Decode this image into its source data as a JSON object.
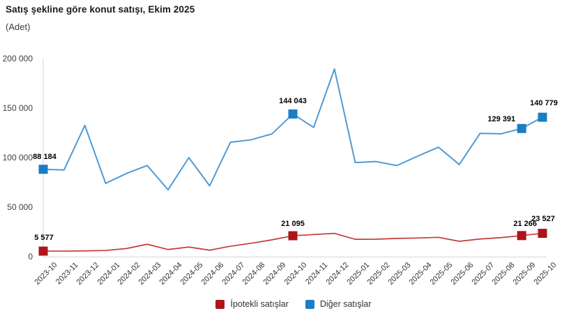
{
  "header": {
    "title": "Satış şekline göre konut satışı, Ekim 2025",
    "subtitle": "(Adet)"
  },
  "colors": {
    "mortgage_line": "#C23B38",
    "mortgage_marker": "#AC1519",
    "other_line": "#4E9AD5",
    "other_marker": "#1B7EC3",
    "axis_line": "#D6D6D6",
    "tick_text": "#333333",
    "data_label_text": "#000000"
  },
  "legend": [
    {
      "label": "İpotekli satışlar",
      "color": "#AC1519"
    },
    {
      "label": "Diğer satışlar",
      "color": "#1B7EC3"
    }
  ],
  "chart_data": {
    "type": "line",
    "title": "Satış şekline göre konut satışı, Ekim 2025",
    "subtitle": "(Adet)",
    "xlabel": "",
    "ylabel": "",
    "ylim": [
      0,
      200000
    ],
    "grid": false,
    "legend_position": "bottom",
    "categories": [
      "2023-10",
      "2023-11",
      "2023-12",
      "2024-01",
      "2024-02",
      "2024-03",
      "2024-04",
      "2024-05",
      "2024-06",
      "2024-07",
      "2024-08",
      "2024-09",
      "2024-10",
      "2024-11",
      "2024-12",
      "2025-01",
      "2025-02",
      "2025-03",
      "2025-04",
      "2025-05",
      "2025-06",
      "2025-07",
      "2025-08",
      "2025-09",
      "2025-10"
    ],
    "yticks": [
      {
        "value": 0,
        "label": "0"
      },
      {
        "value": 50000,
        "label": "50 000"
      },
      {
        "value": 100000,
        "label": "100 000"
      },
      {
        "value": 150000,
        "label": "150 000"
      },
      {
        "value": 200000,
        "label": "200 000"
      }
    ],
    "series": [
      {
        "name": "İpotekli satışlar",
        "line_color": "#C23B38",
        "marker_color": "#AC1519",
        "values": [
          5577,
          5600,
          5800,
          6200,
          8200,
          12500,
          7200,
          9700,
          6500,
          10500,
          13500,
          17000,
          21095,
          22300,
          23500,
          17500,
          17600,
          18400,
          18800,
          19500,
          15500,
          17800,
          19200,
          21266,
          23527
        ],
        "labeled_points": [
          {
            "index": 0,
            "label": "5 577"
          },
          {
            "index": 12,
            "label": "21 095"
          },
          {
            "index": 23,
            "label": "21 266"
          },
          {
            "index": 24,
            "label": "23 527"
          }
        ]
      },
      {
        "name": "Diğer satışlar",
        "line_color": "#4E9AD5",
        "marker_color": "#1B7EC3",
        "values": [
          88184,
          87500,
          132500,
          74000,
          84000,
          92000,
          67500,
          100000,
          71500,
          115500,
          118000,
          124000,
          144043,
          130500,
          189500,
          95000,
          96000,
          92000,
          101500,
          110500,
          93000,
          124500,
          124000,
          129391,
          140779
        ],
        "labeled_points": [
          {
            "index": 0,
            "label": "88 184"
          },
          {
            "index": 12,
            "label": "144 043"
          },
          {
            "index": 23,
            "label": "129 391"
          },
          {
            "index": 24,
            "label": "140 779"
          }
        ]
      }
    ]
  }
}
